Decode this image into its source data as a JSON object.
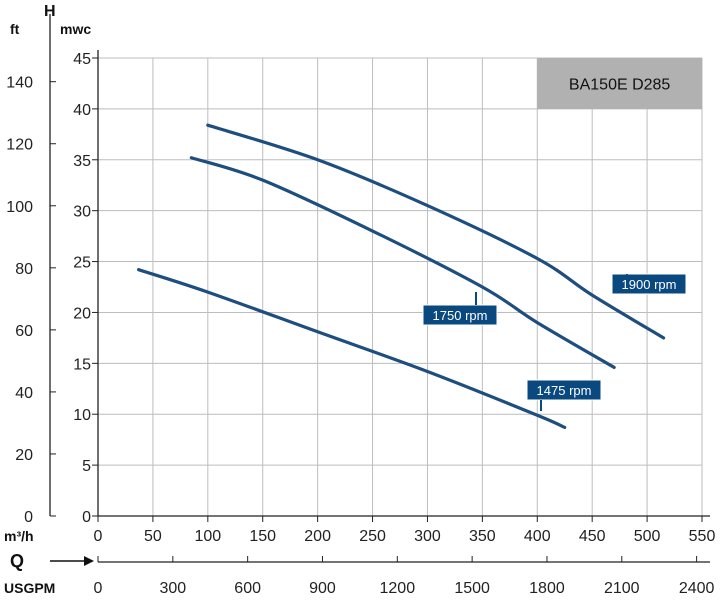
{
  "chart_data": {
    "type": "line",
    "title": "BA150E D285",
    "y_axis_symbol": "H",
    "y_unit_primary": "mwc",
    "y_unit_secondary": "ft",
    "x_axis_symbol": "Q",
    "x_unit_primary": "m³/h",
    "x_unit_secondary": "USGPM",
    "xlim": [
      0,
      550
    ],
    "ylim": [
      0,
      45
    ],
    "x_ticks": [
      "0",
      "50",
      "100",
      "150",
      "200",
      "250",
      "300",
      "350",
      "400",
      "450",
      "500",
      "550"
    ],
    "y_ticks": [
      "0",
      "5",
      "10",
      "15",
      "20",
      "25",
      "30",
      "35",
      "40",
      "45"
    ],
    "y_ticks_secondary": [
      "0",
      "20",
      "40",
      "60",
      "80",
      "100",
      "120",
      "140"
    ],
    "x_ticks_secondary": [
      "0",
      "300",
      "600",
      "900",
      "1200",
      "1500",
      "1800",
      "2100",
      "2400"
    ],
    "grid": true,
    "series": [
      {
        "name": "1900 rpm",
        "x": [
          100,
          200,
          300,
          400,
          450,
          515
        ],
        "y": [
          38.4,
          35.0,
          30.5,
          25.3,
          21.7,
          17.5
        ]
      },
      {
        "name": "1750 rpm",
        "x": [
          85,
          150,
          250,
          350,
          400,
          470
        ],
        "y": [
          35.2,
          33.0,
          28.0,
          22.5,
          19.0,
          14.6
        ]
      },
      {
        "name": "1475 rpm",
        "x": [
          37,
          100,
          200,
          300,
          400,
          425
        ],
        "y": [
          24.2,
          22.0,
          18.1,
          14.2,
          9.9,
          8.7
        ]
      }
    ],
    "series_color": "#1d4e7f",
    "label_fill": "#0a4980",
    "title_box_fill": "#b1b1b1"
  }
}
